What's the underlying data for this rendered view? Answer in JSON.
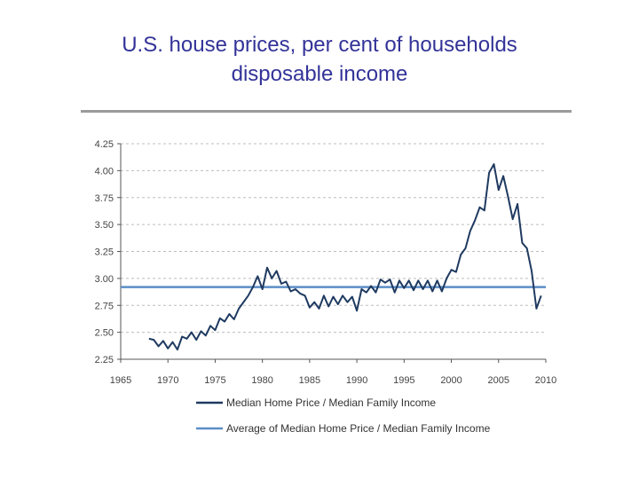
{
  "slide": {
    "title_line1": "U.S. house prices, per cent of households",
    "title_line2": "disposable income"
  },
  "chart_data": {
    "type": "line",
    "title": "U.S. house prices, per cent of households disposable income",
    "xlabel": "",
    "ylabel": "",
    "xlim": [
      1965,
      2010
    ],
    "ylim": [
      2.25,
      4.25
    ],
    "x_ticks": [
      "1965",
      "1970",
      "1975",
      "1980",
      "1985",
      "1990",
      "1995",
      "2000",
      "2005",
      "2010"
    ],
    "y_ticks": [
      "2.25",
      "2.50",
      "2.75",
      "3.00",
      "3.25",
      "3.50",
      "3.75",
      "4.00",
      "4.25"
    ],
    "grid": "horizontal-dashed",
    "legend_position": "bottom",
    "series": [
      {
        "name": "Median Home Price / Median Family Income",
        "color": "#1f3a60",
        "x": [
          1968.0,
          1968.5,
          1969.0,
          1969.5,
          1970.0,
          1970.5,
          1971.0,
          1971.5,
          1972.0,
          1972.5,
          1973.0,
          1973.5,
          1974.0,
          1974.5,
          1975.0,
          1975.5,
          1976.0,
          1976.5,
          1977.0,
          1977.5,
          1978.0,
          1978.5,
          1979.0,
          1979.5,
          1980.0,
          1980.5,
          1981.0,
          1981.5,
          1982.0,
          1982.5,
          1983.0,
          1983.5,
          1984.0,
          1984.5,
          1985.0,
          1985.5,
          1986.0,
          1986.5,
          1987.0,
          1987.5,
          1988.0,
          1988.5,
          1989.0,
          1989.5,
          1990.0,
          1990.5,
          1991.0,
          1991.5,
          1992.0,
          1992.5,
          1993.0,
          1993.5,
          1994.0,
          1994.5,
          1995.0,
          1995.5,
          1996.0,
          1996.5,
          1997.0,
          1997.5,
          1998.0,
          1998.5,
          1999.0,
          1999.5,
          2000.0,
          2000.5,
          2001.0,
          2001.5,
          2002.0,
          2002.5,
          2003.0,
          2003.5,
          2004.0,
          2004.5,
          2005.0,
          2005.5,
          2006.0,
          2006.5,
          2007.0,
          2007.5,
          2008.0,
          2008.5,
          2009.0,
          2009.5
        ],
        "values": [
          2.44,
          2.43,
          2.37,
          2.42,
          2.35,
          2.41,
          2.34,
          2.46,
          2.44,
          2.5,
          2.43,
          2.51,
          2.47,
          2.56,
          2.52,
          2.63,
          2.6,
          2.67,
          2.62,
          2.72,
          2.78,
          2.84,
          2.92,
          3.02,
          2.9,
          3.1,
          3.0,
          3.07,
          2.95,
          2.97,
          2.88,
          2.9,
          2.86,
          2.84,
          2.73,
          2.78,
          2.72,
          2.84,
          2.74,
          2.83,
          2.76,
          2.84,
          2.78,
          2.83,
          2.7,
          2.9,
          2.87,
          2.93,
          2.87,
          2.99,
          2.96,
          2.99,
          2.87,
          2.98,
          2.91,
          2.98,
          2.89,
          2.98,
          2.9,
          2.98,
          2.88,
          2.98,
          2.88,
          3.0,
          3.08,
          3.06,
          3.22,
          3.28,
          3.44,
          3.54,
          3.66,
          3.63,
          3.98,
          4.06,
          3.82,
          3.95,
          3.76,
          3.55,
          3.69,
          3.33,
          3.28,
          3.07,
          2.72,
          2.84
        ]
      },
      {
        "name": "Average of Median Home Price / Median Family Income",
        "color": "#5b8ec7",
        "x": [
          1965,
          2010
        ],
        "values": [
          2.92,
          2.92
        ]
      }
    ]
  }
}
